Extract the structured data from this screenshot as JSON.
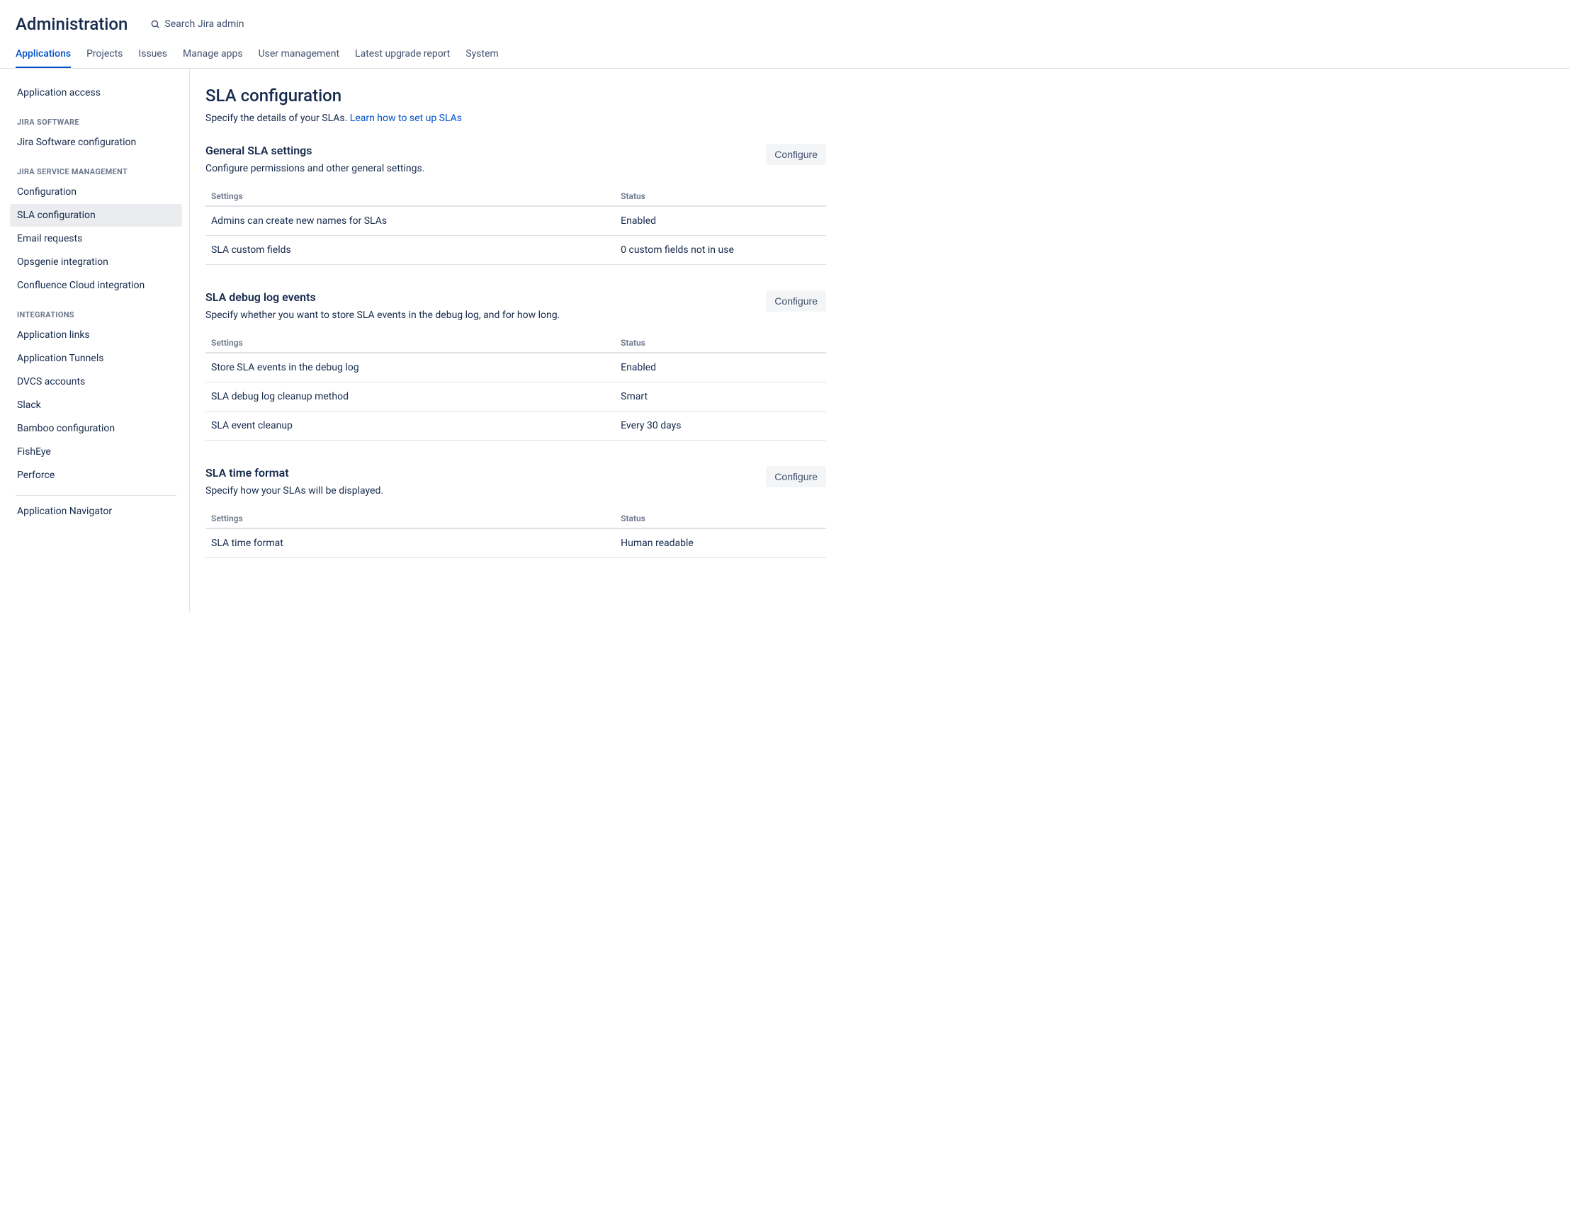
{
  "header": {
    "title": "Administration",
    "search_placeholder": "Search Jira admin"
  },
  "tabs": [
    {
      "label": "Applications",
      "active": true
    },
    {
      "label": "Projects"
    },
    {
      "label": "Issues"
    },
    {
      "label": "Manage apps"
    },
    {
      "label": "User management"
    },
    {
      "label": "Latest upgrade report"
    },
    {
      "label": "System"
    }
  ],
  "sidebar": {
    "top": [
      {
        "label": "Application access"
      }
    ],
    "groups": [
      {
        "heading": "JIRA SOFTWARE",
        "items": [
          {
            "label": "Jira Software configuration"
          }
        ]
      },
      {
        "heading": "JIRA SERVICE MANAGEMENT",
        "items": [
          {
            "label": "Configuration"
          },
          {
            "label": "SLA configuration",
            "active": true
          },
          {
            "label": "Email requests"
          },
          {
            "label": "Opsgenie integration"
          },
          {
            "label": "Confluence Cloud integration"
          }
        ]
      },
      {
        "heading": "INTEGRATIONS",
        "items": [
          {
            "label": "Application links"
          },
          {
            "label": "Application Tunnels"
          },
          {
            "label": "DVCS accounts"
          },
          {
            "label": "Slack"
          },
          {
            "label": "Bamboo configuration"
          },
          {
            "label": "FishEye"
          },
          {
            "label": "Perforce"
          }
        ]
      }
    ],
    "bottom": [
      {
        "label": "Application Navigator"
      }
    ]
  },
  "page": {
    "title": "SLA configuration",
    "desc_prefix": "Specify the details of your SLAs. ",
    "desc_link": "Learn how to set up SLAs"
  },
  "table_headers": {
    "settings": "Settings",
    "status": "Status"
  },
  "sections": [
    {
      "title": "General SLA settings",
      "desc": "Configure permissions and other general settings.",
      "button": "Configure",
      "rows": [
        {
          "setting": "Admins can create new names for SLAs",
          "status": "Enabled"
        },
        {
          "setting": "SLA custom fields",
          "status": "0 custom fields not in use"
        }
      ]
    },
    {
      "title": "SLA debug log events",
      "desc": "Specify whether you want to store SLA events in the debug log, and for how long.",
      "button": "Configure",
      "rows": [
        {
          "setting": "Store SLA events in the debug log",
          "status": "Enabled"
        },
        {
          "setting": "SLA debug log cleanup method",
          "status": "Smart"
        },
        {
          "setting": "SLA event cleanup",
          "status": "Every 30 days"
        }
      ]
    },
    {
      "title": "SLA time format",
      "desc": "Specify how your SLAs will be displayed.",
      "button": "Configure",
      "rows": [
        {
          "setting": "SLA time format",
          "status": "Human readable"
        }
      ]
    }
  ],
  "colors": {
    "primary": "#0052cc",
    "text": "#172b4d",
    "muted": "#6b778c",
    "border": "#dfe1e6",
    "hover_bg": "#ebecf0",
    "btn_bg": "#f4f5f7"
  }
}
